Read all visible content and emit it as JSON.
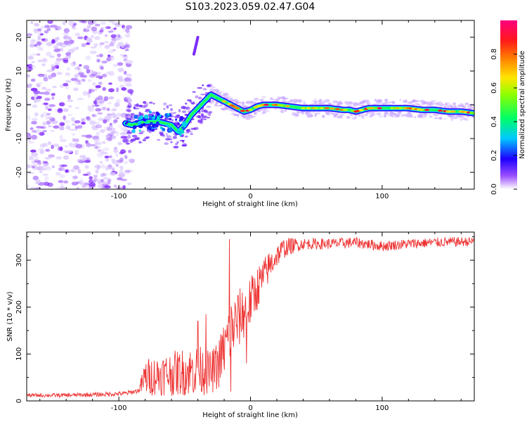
{
  "figure": {
    "title": "S103.2023.059.02.47.G04"
  },
  "chart_data": [
    {
      "type": "heatmap",
      "xlabel": "Height of straight line (km)",
      "ylabel": "Frequency (Hz)",
      "xlim": [
        -170,
        170
      ],
      "ylim": [
        -25,
        25
      ],
      "xticks": [
        -100,
        0,
        100
      ],
      "yticks": [
        -20,
        -10,
        0,
        10,
        20
      ],
      "colorbar": {
        "label": "Normalized spectral amplitude",
        "range": [
          0,
          1
        ],
        "ticks": [
          "0.0",
          "0.2",
          "0.4",
          "0.6",
          "0.8"
        ]
      },
      "ridge": {
        "x": [
          -95,
          -90,
          -80,
          -70,
          -60,
          -55,
          -50,
          -45,
          -40,
          -35,
          -30,
          -25,
          -20,
          -15,
          -10,
          -5,
          0,
          5,
          10,
          20,
          30,
          40,
          50,
          60,
          70,
          75,
          80,
          85,
          90,
          100,
          110,
          120,
          130,
          140,
          150,
          160,
          170
        ],
        "y": [
          -5.5,
          -6,
          -5,
          -5,
          -6,
          -8,
          -6,
          -3,
          -1,
          1,
          3,
          2,
          1,
          0,
          -1,
          -2,
          -1.5,
          -0.5,
          0,
          0,
          -0.5,
          -1,
          -1,
          -1,
          -1.5,
          -1.5,
          -2,
          -1.5,
          -1,
          -1,
          -1,
          -1,
          -1.5,
          -1.5,
          -2,
          -2,
          -2.5
        ]
      },
      "burst": {
        "x": [
          -43,
          -40
        ],
        "y": [
          15,
          20
        ]
      }
    },
    {
      "type": "line",
      "xlabel": "Height of straight line (km)",
      "ylabel": "SNR (10 * v/v)",
      "xlim": [
        -170,
        170
      ],
      "ylim": [
        0,
        360
      ],
      "xticks": [
        -100,
        0,
        100
      ],
      "yticks": [
        0,
        100,
        200,
        300
      ],
      "color": "#ee3333",
      "trend": {
        "x": [
          -170,
          -140,
          -110,
          -95,
          -85,
          -80,
          -70,
          -60,
          -50,
          -40,
          -30,
          -25,
          -20,
          -15,
          -10,
          -5,
          0,
          5,
          10,
          15,
          20,
          25,
          30,
          40,
          60,
          80,
          100,
          120,
          140,
          170
        ],
        "y": [
          12,
          12,
          14,
          16,
          22,
          50,
          55,
          58,
          62,
          65,
          60,
          75,
          110,
          150,
          170,
          190,
          210,
          240,
          265,
          290,
          310,
          325,
          330,
          335,
          335,
          338,
          330,
          335,
          338,
          340
        ]
      },
      "noise": {
        "x": [
          -170,
          -85,
          -80,
          -40,
          -30,
          -15,
          0,
          20,
          40,
          170
        ],
        "amp": [
          4,
          5,
          40,
          55,
          45,
          70,
          55,
          25,
          12,
          10
        ]
      },
      "spikes": [
        {
          "x": -16,
          "y": 345
        },
        {
          "x": -15,
          "y": 20
        },
        {
          "x": -3,
          "y": 80
        },
        {
          "x": -34,
          "y": 185
        },
        {
          "x": -40,
          "y": 170
        }
      ]
    }
  ]
}
